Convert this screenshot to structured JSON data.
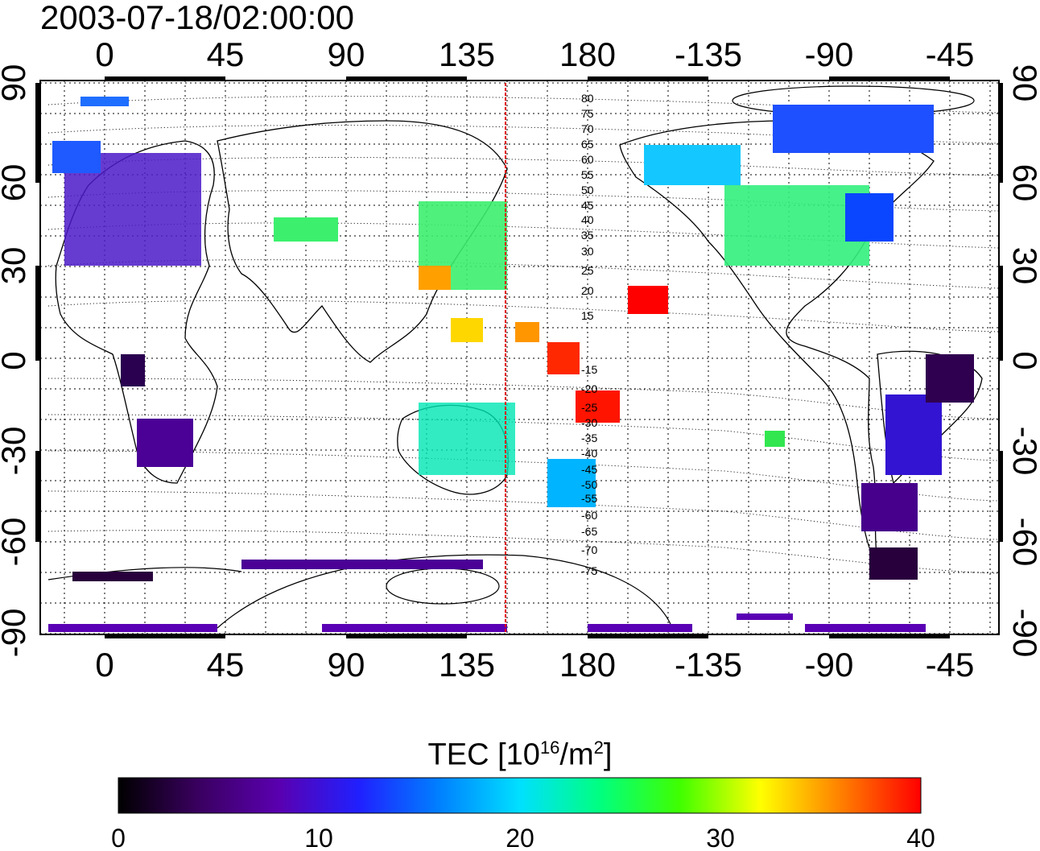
{
  "title": "2003-07-18/02:00:00",
  "map": {
    "top_lon_ticks": [
      "0",
      "45",
      "90",
      "135",
      "180",
      "-135",
      "-90",
      "-45"
    ],
    "bottom_lon_ticks": [
      "0",
      "45",
      "90",
      "135",
      "180",
      "-135",
      "-90",
      "-45"
    ],
    "left_lat_ticks": [
      "90",
      "60",
      "30",
      "0",
      "-30",
      "-60",
      "-90"
    ],
    "right_lat_ticks": [
      "90",
      "60",
      "30",
      "0",
      "-30",
      "-60",
      "-90"
    ],
    "marker_line": {
      "color": "#e00000"
    },
    "contour_labels_north": [
      "80",
      "75",
      "70",
      "65",
      "60",
      "55",
      "50",
      "45",
      "40",
      "35",
      "30",
      "25",
      "20",
      "15"
    ],
    "contour_labels_south": [
      "-15",
      "-20",
      "-25",
      "-30",
      "-35",
      "-40",
      "-45",
      "-50",
      "-55",
      "-60",
      "-65",
      "-70",
      "-75"
    ]
  },
  "colorbar": {
    "title_main": "TEC  [10",
    "title_sup1": "16",
    "title_mid": "/m",
    "title_sup2": "2",
    "title_end": "]",
    "tick_labels": [
      "0",
      "10",
      "20",
      "30",
      "40"
    ],
    "colors": [
      "#000000",
      "#3a0060",
      "#5a00b0",
      "#2020ff",
      "#0080ff",
      "#00e0ff",
      "#00ff80",
      "#40ff00",
      "#ffff00",
      "#ff8000",
      "#ff0000"
    ]
  }
}
